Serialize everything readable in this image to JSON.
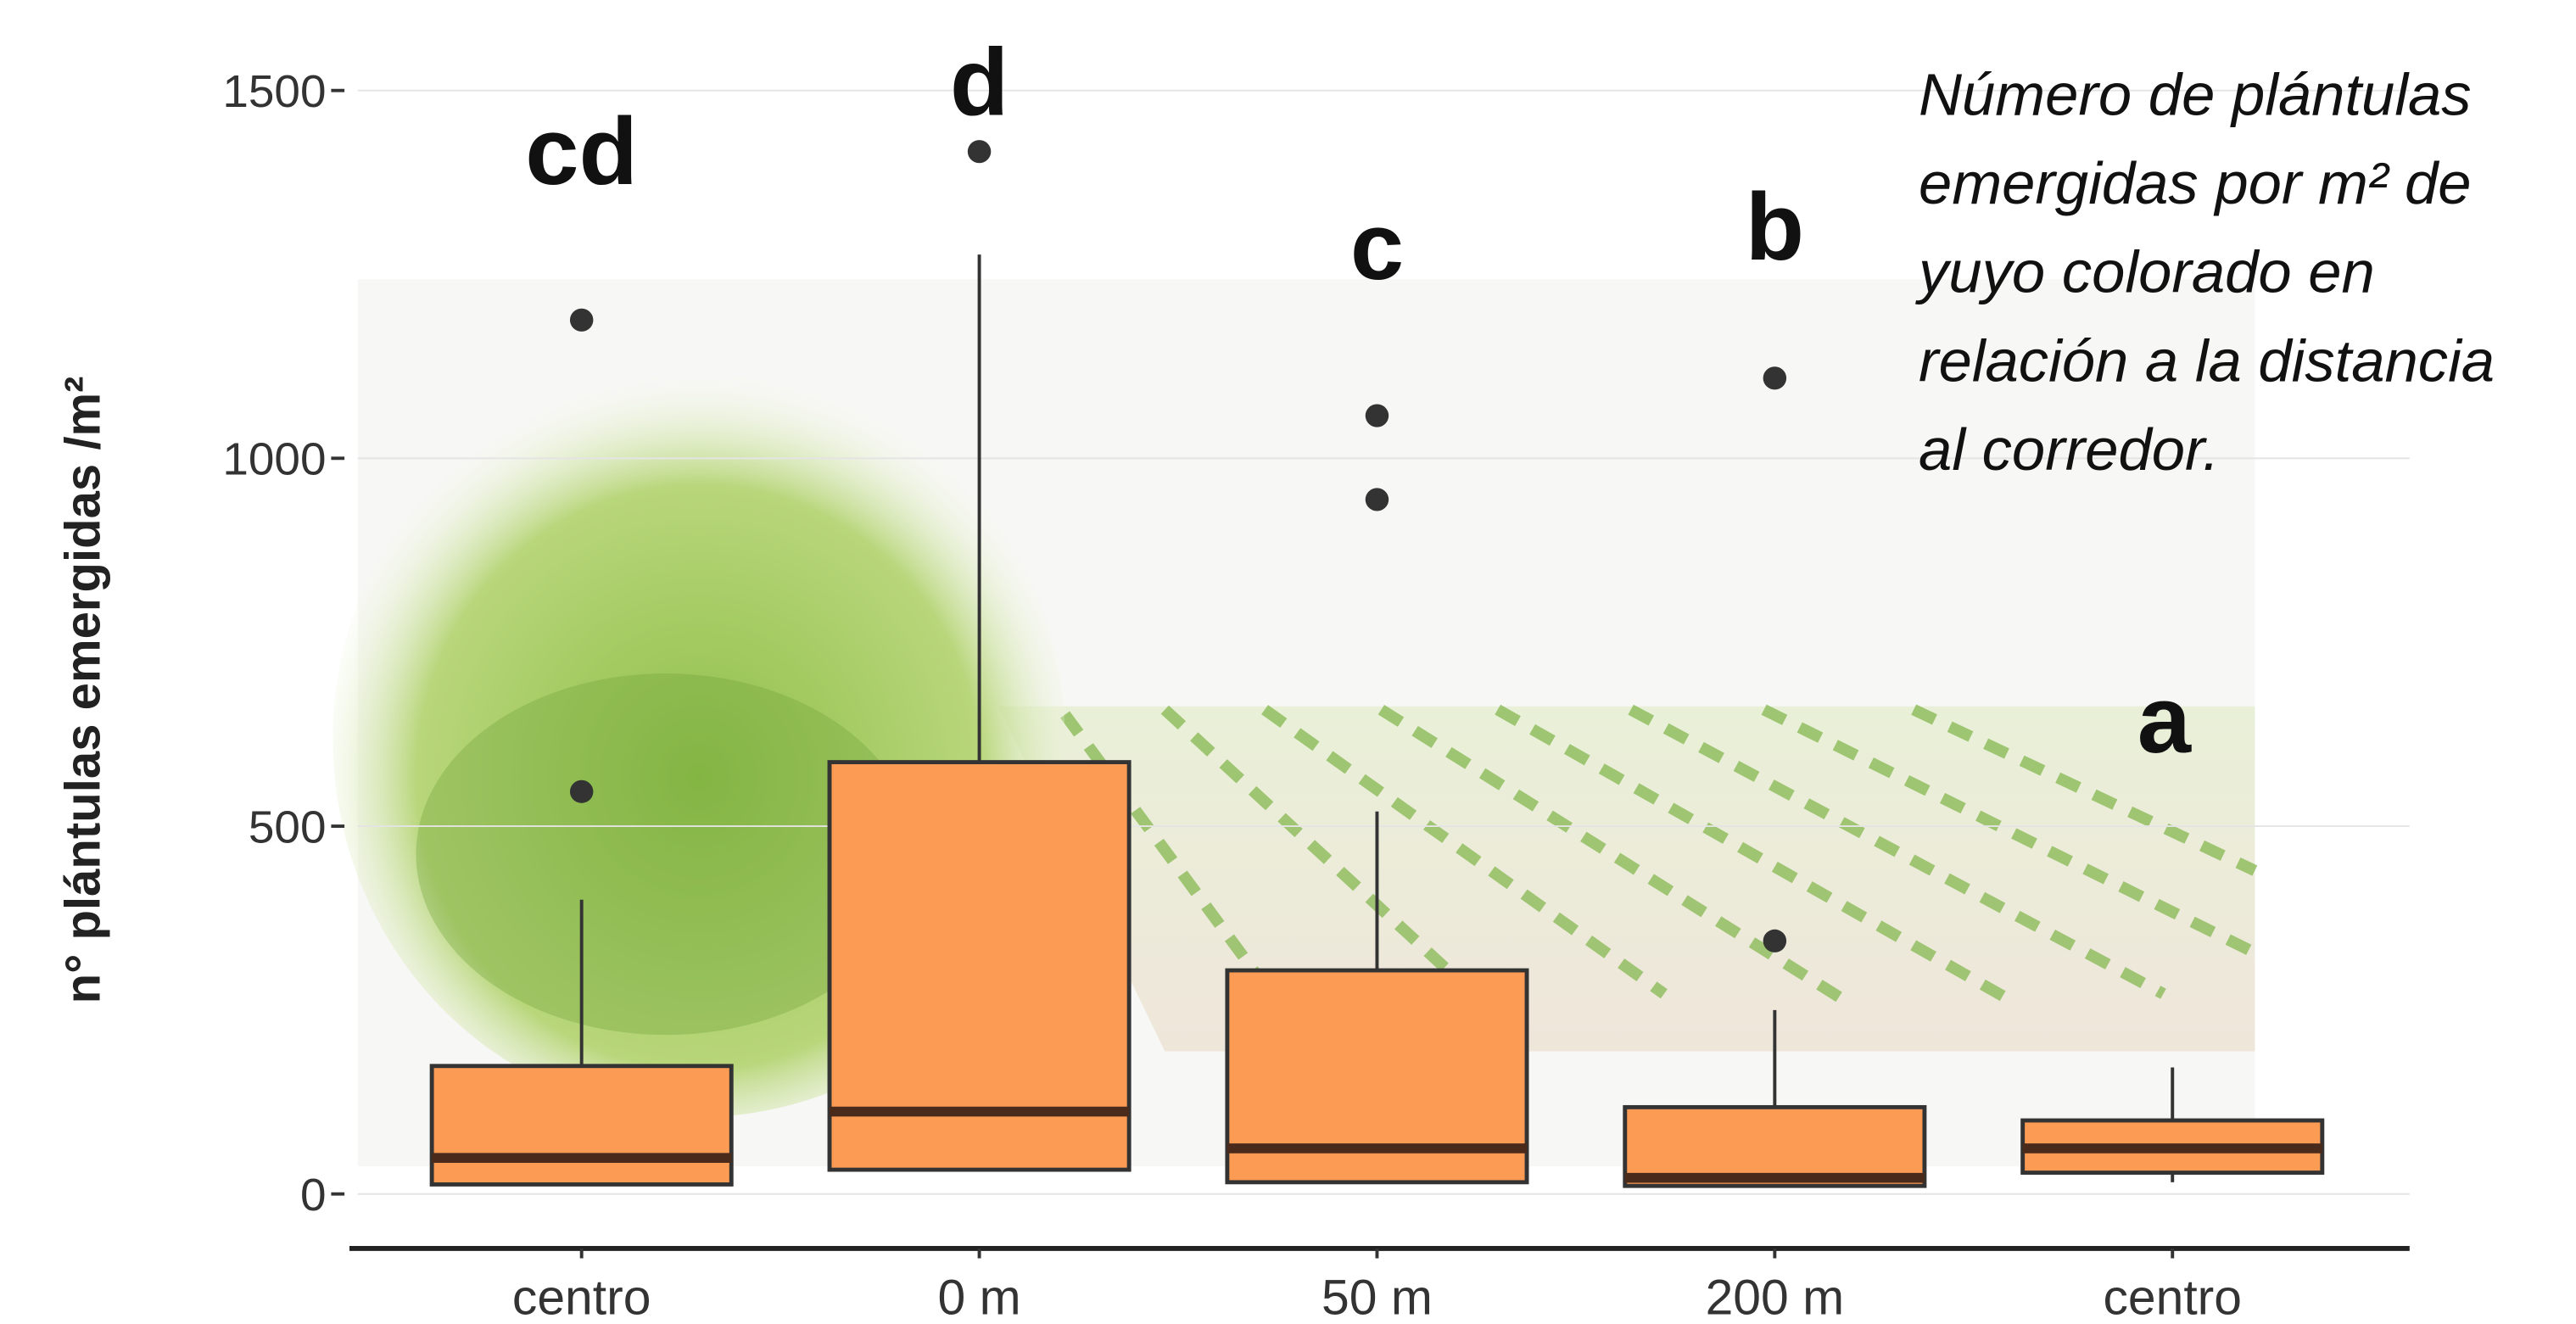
{
  "chart_data": {
    "type": "box",
    "y_label": "n° plántulas emergidas /m²",
    "categories": [
      "centro",
      "0 m",
      "50 m",
      "200 m",
      "centro"
    ],
    "letters": [
      "cd",
      "d",
      "c",
      "b",
      "a"
    ],
    "boxes": [
      {
        "min": 13,
        "q1": 13,
        "median": 49,
        "q3": 174,
        "max": 400,
        "outliers": [
          547,
          1188
        ]
      },
      {
        "min": 33,
        "q1": 33,
        "median": 112,
        "q3": 587,
        "max": 1277,
        "outliers": [
          1417
        ]
      },
      {
        "min": 16,
        "q1": 16,
        "median": 62,
        "q3": 304,
        "max": 520,
        "outliers": [
          944,
          1058
        ]
      },
      {
        "min": 11,
        "q1": 11,
        "median": 22,
        "q3": 118,
        "max": 250,
        "outliers": [
          344,
          1109
        ]
      },
      {
        "min": 16,
        "q1": 29,
        "median": 62,
        "q3": 100,
        "max": 172,
        "outliers": []
      }
    ],
    "color": "#fb9b54",
    "ylim": [
      -74,
      1623
    ],
    "yticks": [
      0,
      500,
      1000,
      1500
    ],
    "annotation_lines": [
      "Número de plántulas",
      "emergidas por m² de",
      "yuyo colorado en",
      "relación a la distancia",
      "al corredor."
    ]
  }
}
